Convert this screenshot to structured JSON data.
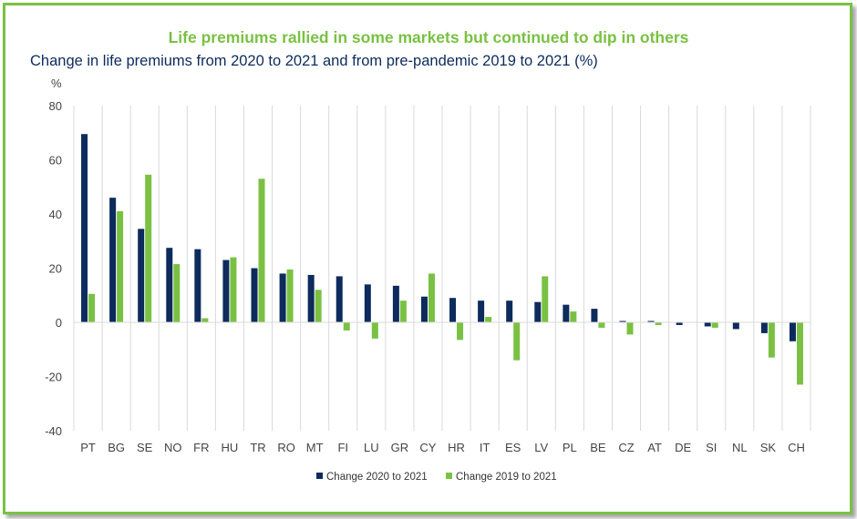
{
  "chart_data": {
    "type": "bar",
    "title": "Life premiums rallied in some markets but continued to dip in others",
    "subtitle": "Change in life premiums from 2020 to 2021 and from pre-pandemic 2019 to 2021 (%)",
    "ylabel": "%",
    "xlabel": "",
    "ylim": [
      -40,
      80
    ],
    "yticks": [
      -40,
      -20,
      0,
      20,
      40,
      60,
      80
    ],
    "grid": true,
    "legend_position": "bottom",
    "categories": [
      "PT",
      "BG",
      "SE",
      "NO",
      "FR",
      "HU",
      "TR",
      "RO",
      "MT",
      "FI",
      "LU",
      "GR",
      "CY",
      "HR",
      "IT",
      "ES",
      "LV",
      "PL",
      "BE",
      "CZ",
      "AT",
      "DE",
      "SI",
      "NL",
      "SK",
      "CH"
    ],
    "series": [
      {
        "name": "Change 2020 to 2021",
        "color": "#0d2b5c",
        "values": [
          69.5,
          46,
          34.5,
          27.5,
          27,
          23,
          20,
          18,
          17.5,
          17,
          14,
          13.5,
          9.5,
          9,
          8,
          8,
          7.5,
          6.5,
          5,
          0.5,
          0.5,
          -1,
          -1.5,
          -2.5,
          -4,
          -7
        ]
      },
      {
        "name": "Change 2019 to 2021",
        "color": "#7ac143",
        "values": [
          10.5,
          41,
          54.5,
          21.5,
          1.5,
          24,
          53,
          19.5,
          12,
          -3,
          -6,
          8,
          18,
          -6.5,
          2,
          -14,
          17,
          4,
          -2,
          -4.5,
          -1,
          0,
          -2,
          0,
          -13,
          -23
        ]
      }
    ]
  }
}
